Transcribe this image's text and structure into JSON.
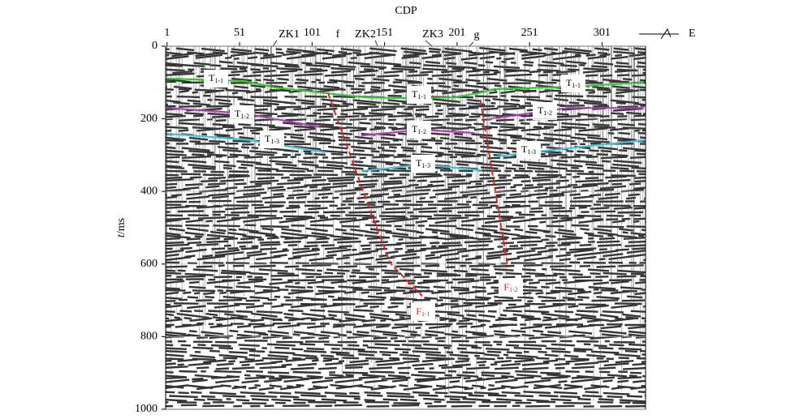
{
  "chart_data": {
    "type": "line",
    "x_label": "CDP",
    "y_label": {
      "italic": "t",
      "rest": "/ms"
    },
    "xlim": [
      0,
      331
    ],
    "xticks": [
      1,
      51,
      101,
      151,
      201,
      251,
      301
    ],
    "ylim": [
      0,
      1000
    ],
    "yticks": [
      0,
      200,
      400,
      600,
      800,
      1000
    ],
    "y_reversed": true,
    "grid": true,
    "markers": [
      "ZK1",
      "f",
      "ZK2",
      "ZK3",
      "g"
    ],
    "direction": "E",
    "series": [
      {
        "color": "#39c437",
        "dash": false,
        "x": [
          1,
          54,
          76,
          110,
          138,
          166,
          199,
          216,
          227,
          278,
          330
        ],
        "values": [
          89,
          96,
          114,
          129,
          141,
          143,
          141,
          129,
          118,
          112,
          100
        ]
      },
      {
        "color": "#b03ab5",
        "dash": false,
        "x": [
          1,
          54,
          107,
          121,
          135,
          177,
          213,
          217,
          222,
          278,
          330
        ],
        "values": [
          170,
          185,
          223,
          null,
          246,
          230,
          239,
          null,
          201,
          170,
          170
        ]
      },
      {
        "color": "#46c0d8",
        "dash": false,
        "x": [
          1,
          54,
          110,
          122,
          135,
          177,
          218,
          222,
          227,
          278,
          330
        ],
        "values": [
          241,
          257,
          292,
          null,
          344,
          326,
          342,
          null,
          304,
          281,
          259
        ]
      },
      {
        "color": "#e0251e",
        "dash": true,
        "x": [
          112,
          141,
          155,
          177
        ],
        "values": [
          129,
          453,
          598,
          688
        ]
      },
      {
        "color": "#e0251e",
        "dash": true,
        "x": [
          217,
          236
        ],
        "values": [
          147,
          609
        ]
      }
    ],
    "annotations": [
      {
        "main": "T",
        "sub": "1-1",
        "color": "#000000"
      },
      {
        "main": "T",
        "sub": "1-1",
        "color": "#000000"
      },
      {
        "main": "T",
        "sub": "1-1",
        "color": "#000000"
      },
      {
        "main": "T",
        "sub": "1-2",
        "color": "#000000"
      },
      {
        "main": "T",
        "sub": "1-2",
        "color": "#000000"
      },
      {
        "main": "T",
        "sub": "1-2",
        "color": "#000000"
      },
      {
        "main": "T",
        "sub": "1-3",
        "color": "#000000"
      },
      {
        "main": "T",
        "sub": "1-3",
        "color": "#000000"
      },
      {
        "main": "T",
        "sub": "1-3",
        "color": "#000000"
      },
      {
        "main": "F",
        "sub": "1-1",
        "color": "#e0251e"
      },
      {
        "main": "F",
        "sub": "1-2",
        "color": "#e0251e"
      }
    ]
  }
}
